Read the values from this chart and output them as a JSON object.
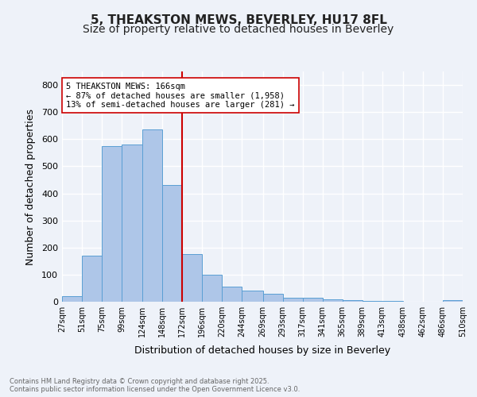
{
  "title": "5, THEAKSTON MEWS, BEVERLEY, HU17 8FL",
  "subtitle": "Size of property relative to detached houses in Beverley",
  "xlabel": "Distribution of detached houses by size in Beverley",
  "ylabel": "Number of detached properties",
  "bar_edges": [
    27,
    51,
    75,
    99,
    124,
    148,
    172,
    196,
    220,
    244,
    269,
    293,
    317,
    341,
    365,
    389,
    413,
    438,
    462,
    486,
    510
  ],
  "bar_heights": [
    20,
    170,
    575,
    580,
    635,
    430,
    175,
    100,
    55,
    40,
    30,
    15,
    15,
    10,
    5,
    3,
    2,
    1,
    1,
    5
  ],
  "bar_color": "#aec6e8",
  "bar_edge_color": "#5a9fd4",
  "property_line_x": 172,
  "property_line_color": "#cc0000",
  "annotation_text": "5 THEAKSTON MEWS: 166sqm\n← 87% of detached houses are smaller (1,958)\n13% of semi-detached houses are larger (281) →",
  "annotation_box_color": "#ffffff",
  "annotation_box_edge": "#cc0000",
  "ylim": [
    0,
    850
  ],
  "yticks": [
    0,
    100,
    200,
    300,
    400,
    500,
    600,
    700,
    800
  ],
  "tick_labels": [
    "27sqm",
    "51sqm",
    "75sqm",
    "99sqm",
    "124sqm",
    "148sqm",
    "172sqm",
    "196sqm",
    "220sqm",
    "244sqm",
    "269sqm",
    "293sqm",
    "317sqm",
    "341sqm",
    "365sqm",
    "389sqm",
    "413sqm",
    "438sqm",
    "462sqm",
    "486sqm",
    "510sqm"
  ],
  "footer_text": "Contains HM Land Registry data © Crown copyright and database right 2025.\nContains public sector information licensed under the Open Government Licence v3.0.",
  "bg_color": "#eef2f9",
  "grid_color": "#ffffff",
  "title_fontsize": 11,
  "subtitle_fontsize": 10,
  "label_fontsize": 9
}
